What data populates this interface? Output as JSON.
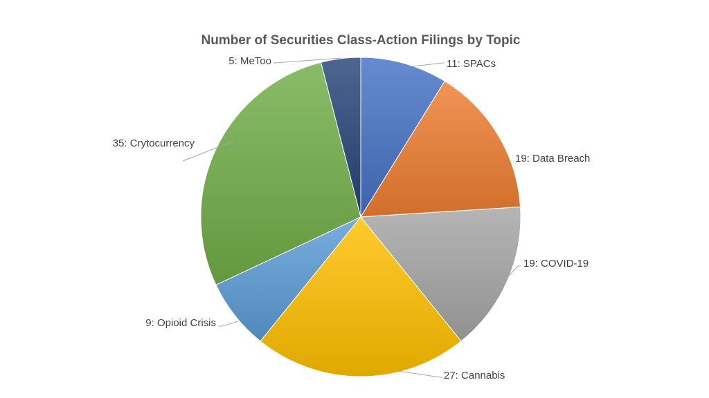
{
  "chart_data": {
    "type": "pie",
    "title": "Number of Securities Class-Action Filings by Topic",
    "start_angle_deg": 0,
    "direction": "clockwise",
    "slices": [
      {
        "category": "SPACs",
        "value": 11,
        "label": "11: SPACs",
        "color": "#4472C4"
      },
      {
        "category": "Data Breach",
        "value": 19,
        "label": "19: Data Breach",
        "color": "#ED7D31"
      },
      {
        "category": "COVID-19",
        "value": 19,
        "label": "19: COVID-19",
        "color": "#A5A5A5"
      },
      {
        "category": "Cannabis",
        "value": 27,
        "label": "27: Cannabis",
        "color": "#FFC000"
      },
      {
        "category": "Opioid Crisis",
        "value": 9,
        "label": "9: Opioid Crisis",
        "color": "#5B9BD5"
      },
      {
        "category": "Crytocurrency",
        "value": 35,
        "label": "35: Crytocurrency",
        "color": "#70AD47"
      },
      {
        "category": "MeToo",
        "value": 5,
        "label": "5: MeToo",
        "color": "#264478"
      }
    ]
  }
}
